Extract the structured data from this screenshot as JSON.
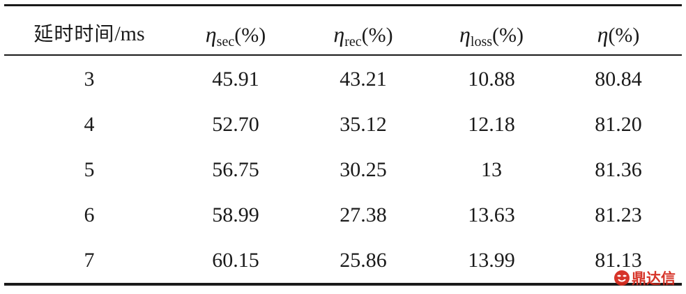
{
  "table": {
    "header": {
      "delay_label": "延时时间",
      "delay_unit": "/ms",
      "symbol": "η",
      "sec_sub": "sec",
      "rec_sub": "rec",
      "loss_sub": "loss",
      "unit": "(%)"
    },
    "rows": [
      [
        "3",
        "45.91",
        "43.21",
        "10.88",
        "80.84"
      ],
      [
        "4",
        "52.70",
        "35.12",
        "12.18",
        "81.20"
      ],
      [
        "5",
        "56.75",
        "30.25",
        "13",
        "81.36"
      ],
      [
        "6",
        "58.99",
        "27.38",
        "13.63",
        "81.23"
      ],
      [
        "7",
        "60.15",
        "25.86",
        "13.99",
        "81.13"
      ]
    ]
  },
  "watermark": {
    "text": "鼎达信",
    "color": "#d42a1e",
    "icon": "brand-logo-icon"
  }
}
